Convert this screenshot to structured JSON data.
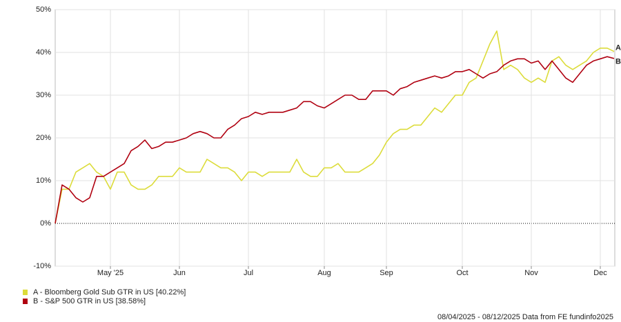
{
  "chart_data": {
    "type": "line",
    "categories": [
      null,
      null,
      null,
      null,
      null,
      null,
      null,
      null,
      "May '25",
      null,
      null,
      null,
      null,
      null,
      null,
      null,
      null,
      null,
      "Jun",
      null,
      null,
      null,
      null,
      null,
      null,
      null,
      null,
      null,
      "Jul",
      null,
      null,
      null,
      null,
      null,
      null,
      null,
      null,
      null,
      null,
      "Aug",
      null,
      null,
      null,
      null,
      null,
      null,
      null,
      null,
      "Sep",
      null,
      null,
      null,
      null,
      null,
      null,
      null,
      null,
      null,
      null,
      "Oct",
      null,
      null,
      null,
      null,
      null,
      null,
      null,
      null,
      null,
      "Nov",
      null,
      null,
      null,
      null,
      null,
      null,
      null,
      null,
      null,
      "Dec",
      null,
      null
    ],
    "series": [
      {
        "name": "A - Bloomberg Gold Sub GTR in US [40.22%]",
        "end_label": "A",
        "color": "#dcdc3a",
        "values": [
          0,
          8,
          8,
          12,
          13,
          14,
          12,
          11,
          8,
          12,
          12,
          9,
          8,
          8,
          9,
          11,
          11,
          11,
          13,
          12,
          12,
          12,
          15,
          14,
          13,
          13,
          12,
          10,
          12,
          12,
          11,
          12,
          12,
          12,
          12,
          15,
          12,
          11,
          11,
          13,
          13,
          14,
          12,
          12,
          12,
          13,
          14,
          16,
          19,
          21,
          22,
          22,
          23,
          23,
          25,
          27,
          26,
          28,
          30,
          30,
          33,
          34,
          38,
          42,
          45,
          36,
          37,
          36,
          34,
          33,
          34,
          33,
          38,
          39,
          37,
          36,
          37,
          38,
          40,
          41,
          41,
          40.22
        ]
      },
      {
        "name": "B - S&P 500 GTR in US [38.58%]",
        "end_label": "B",
        "color": "#b00010",
        "values": [
          0,
          9,
          8,
          6,
          5,
          6,
          11,
          11,
          12,
          13,
          14,
          17,
          18,
          19.5,
          17.5,
          18,
          19,
          19,
          19.5,
          20,
          21,
          21.5,
          21,
          20,
          20,
          22,
          23,
          24.5,
          25,
          26,
          25.5,
          26,
          26,
          26,
          26.5,
          27,
          28.5,
          28.5,
          27.5,
          27,
          28,
          29,
          30,
          30,
          29,
          29,
          31,
          31,
          31,
          30,
          31.5,
          32,
          33,
          33.5,
          34,
          34.5,
          34,
          34.5,
          35.5,
          35.5,
          36,
          35,
          34,
          35,
          35.5,
          37,
          38,
          38.5,
          38.5,
          37.5,
          38,
          36,
          38,
          36,
          34,
          33,
          35,
          37,
          38,
          38.5,
          39,
          38.58
        ]
      }
    ],
    "ylim": [
      -10,
      50
    ],
    "yticks": [
      {
        "value": -10,
        "label": "-10%"
      },
      {
        "value": 0,
        "label": "0%"
      },
      {
        "value": 10,
        "label": "10%"
      },
      {
        "value": 20,
        "label": "20%"
      },
      {
        "value": 30,
        "label": "30%"
      },
      {
        "value": 40,
        "label": "40%"
      },
      {
        "value": 50,
        "label": "50%"
      }
    ],
    "grid": true,
    "footer": "08/04/2025 - 08/12/2025 Data from FE fundinfo2025"
  }
}
